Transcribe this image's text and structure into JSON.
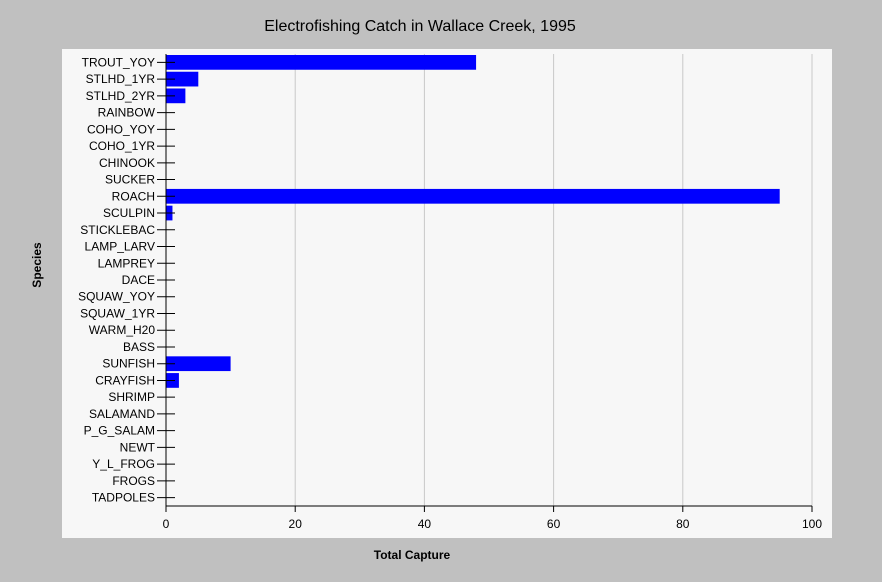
{
  "chart_data": {
    "type": "bar",
    "orientation": "horizontal",
    "title": "Electrofishing Catch in Wallace Creek, 1995",
    "xlabel": "Total Capture",
    "ylabel": "Species",
    "xlim": [
      0,
      100
    ],
    "xticks": [
      "0",
      "20",
      "40",
      "60",
      "80",
      "100"
    ],
    "grid": true,
    "bar_color": "#0000ff",
    "categories": [
      "TROUT_YOY",
      "STLHD_1YR",
      "STLHD_2YR",
      "RAINBOW",
      "COHO_YOY",
      "COHO_1YR",
      "CHINOOK",
      "SUCKER",
      "ROACH",
      "SCULPIN",
      "STICKLEBAC",
      "LAMP_LARV",
      "LAMPREY",
      "DACE",
      "SQUAW_YOY",
      "SQUAW_1YR",
      "WARM_H20",
      "BASS",
      "SUNFISH",
      "CRAYFISH",
      "SHRIMP",
      "SALAMAND",
      "P_G_SALAM",
      "NEWT",
      "Y_L_FROG",
      "FROGS",
      "TADPOLES"
    ],
    "values": [
      48,
      5,
      3,
      0,
      0,
      0,
      0,
      0,
      95,
      1,
      0,
      0,
      0,
      0,
      0,
      0,
      0,
      0,
      10,
      2,
      0,
      0,
      0,
      0,
      0,
      0,
      0
    ]
  }
}
